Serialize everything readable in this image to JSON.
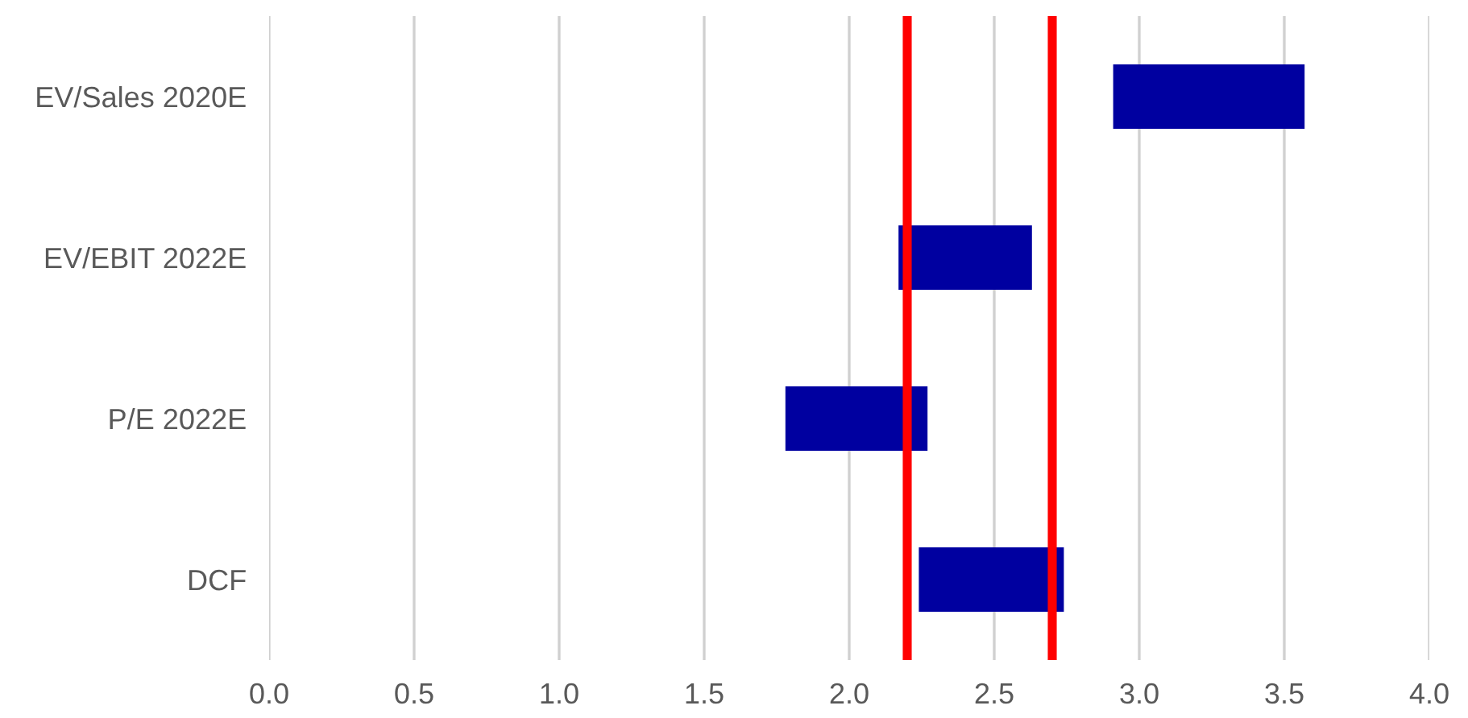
{
  "chart_data": {
    "type": "bar",
    "orientation": "horizontal",
    "categories": [
      "EV/Sales 2020E",
      "EV/EBIT 2022E",
      "P/E 2022E",
      "DCF"
    ],
    "base": [
      2.91,
      2.17,
      1.78,
      2.24
    ],
    "values": [
      0.66,
      0.46,
      0.49,
      0.5
    ],
    "color": "#0000a0",
    "xlim": [
      0,
      4
    ],
    "xticks": [
      {
        "value": 0,
        "label": "0.0"
      },
      {
        "value": 0.5,
        "label": "0.5"
      },
      {
        "value": 1,
        "label": "1.0"
      },
      {
        "value": 1.5,
        "label": "1.5"
      },
      {
        "value": 2,
        "label": "2.0"
      },
      {
        "value": 2.5,
        "label": "2.5"
      },
      {
        "value": 3,
        "label": "3.0"
      },
      {
        "value": 3.5,
        "label": "3.5"
      },
      {
        "value": 4,
        "label": "4.0"
      }
    ],
    "ref_lines": [
      {
        "axis": "x",
        "value": 2.2,
        "label": null,
        "color": "#ff0000"
      },
      {
        "axis": "x",
        "value": 2.7,
        "label": null,
        "color": "#ff0000"
      }
    ],
    "grid": "x",
    "legend": false
  }
}
